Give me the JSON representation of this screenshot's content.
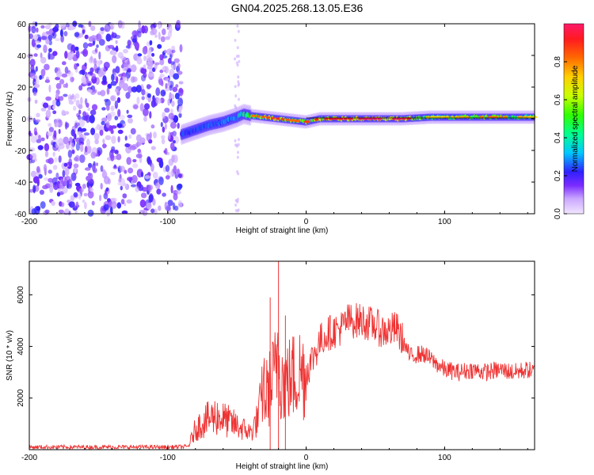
{
  "title": "GN04.2025.268.13.05.E36",
  "colors": {
    "line": "#ee3333",
    "axis": "#000000",
    "background": "#ffffff"
  },
  "chart_data": [
    {
      "type": "heatmap",
      "name": "spectrogram",
      "xlabel": "Height of straight line (km)",
      "ylabel": "Frequency (Hz)",
      "xlim": [
        -200,
        165
      ],
      "ylim": [
        -60,
        60
      ],
      "xticks": [
        "-200",
        "-100",
        "0",
        "100"
      ],
      "yticks": [
        "60",
        "40",
        "20",
        "0",
        "-20",
        "-40",
        "-60"
      ],
      "colorbar": {
        "label": "Normalized spectral amplitude",
        "range": [
          0.0,
          1.0
        ],
        "ticks": [
          "0.0",
          "0.2",
          "0.4",
          "0.6",
          "0.8"
        ]
      },
      "noise_region_x": [
        -200,
        -90
      ],
      "ridge_x": [
        -90,
        -80,
        -70,
        -60,
        -50,
        -45,
        -40,
        -30,
        -20,
        -10,
        0,
        10,
        30,
        50,
        70,
        90,
        110,
        130,
        150,
        165
      ],
      "ridge_freq": [
        -10,
        -7,
        -4,
        -2,
        1,
        3,
        2,
        1,
        0,
        -1,
        -2,
        0,
        0,
        0,
        0,
        1,
        1,
        1,
        1,
        1
      ],
      "ridge_amp": [
        0.3,
        0.32,
        0.34,
        0.36,
        0.4,
        0.62,
        0.7,
        0.75,
        0.8,
        0.72,
        0.78,
        0.82,
        0.85,
        0.92,
        0.9,
        0.6,
        0.65,
        0.72,
        0.7,
        0.6
      ]
    },
    {
      "type": "line",
      "name": "snr",
      "xlabel": "Height of straight line (km)",
      "ylabel": "SNR (10 * v/v)",
      "xlim": [
        -200,
        165
      ],
      "ylim": [
        0,
        7300
      ],
      "xticks": [
        "-200",
        "-100",
        "0",
        "100"
      ],
      "yticks": [
        "6000",
        "4000",
        "2000"
      ],
      "series": [
        {
          "name": "SNR",
          "x": [
            -200,
            -150,
            -100,
            -85,
            -80,
            -75,
            -70,
            -65,
            -60,
            -55,
            -50,
            -45,
            -40,
            -35,
            -30,
            -25,
            -22,
            -20,
            -18,
            -15,
            -10,
            -5,
            0,
            5,
            10,
            15,
            20,
            25,
            30,
            35,
            40,
            45,
            50,
            55,
            60,
            65,
            70,
            75,
            80,
            85,
            90,
            100,
            110,
            120,
            130,
            140,
            150,
            160,
            165
          ],
          "y": [
            100,
            100,
            100,
            120,
            600,
            800,
            900,
            1000,
            900,
            800,
            700,
            600,
            500,
            900,
            2000,
            2600,
            3000,
            4300,
            2800,
            2600,
            2800,
            3000,
            3000,
            3600,
            4200,
            4500,
            4600,
            4700,
            5000,
            5000,
            5000,
            4900,
            4800,
            4600,
            4600,
            4700,
            4200,
            3600,
            3700,
            3700,
            3500,
            3100,
            3000,
            3100,
            3000,
            3100,
            3000,
            3100,
            3000
          ]
        }
      ],
      "spikes": [
        {
          "x": -20,
          "y": 7300
        },
        {
          "x": -26,
          "y": 5900
        },
        {
          "x": -15,
          "y": 5200
        }
      ]
    }
  ]
}
